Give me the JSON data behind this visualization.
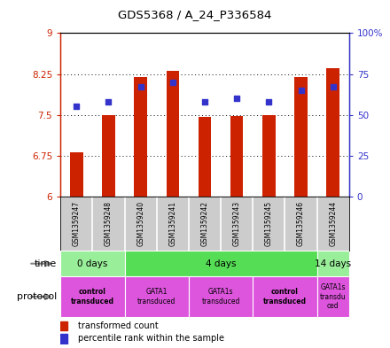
{
  "title": "GDS5368 / A_24_P336584",
  "samples": [
    "GSM1359247",
    "GSM1359248",
    "GSM1359240",
    "GSM1359241",
    "GSM1359242",
    "GSM1359243",
    "GSM1359245",
    "GSM1359246",
    "GSM1359244"
  ],
  "bar_values": [
    6.82,
    7.5,
    8.19,
    8.3,
    7.46,
    7.48,
    7.5,
    8.19,
    8.35
  ],
  "dot_values": [
    55,
    58,
    67,
    70,
    58,
    60,
    58,
    65,
    67
  ],
  "ylim_left": [
    6,
    9
  ],
  "ylim_right": [
    0,
    100
  ],
  "yticks_left": [
    6,
    6.75,
    7.5,
    8.25,
    9
  ],
  "yticks_right": [
    0,
    25,
    50,
    75,
    100
  ],
  "bar_color": "#cc2200",
  "dot_color": "#3333cc",
  "bar_base": 6,
  "time_groups": [
    {
      "label": "0 days",
      "start": 0,
      "end": 2,
      "color": "#99ee99"
    },
    {
      "label": "4 days",
      "start": 2,
      "end": 8,
      "color": "#55dd55"
    },
    {
      "label": "14 days",
      "start": 8,
      "end": 9,
      "color": "#99ee99"
    }
  ],
  "protocol_groups": [
    {
      "label": "control\ntransduced",
      "start": 0,
      "end": 2,
      "color": "#dd55dd",
      "bold": true
    },
    {
      "label": "GATA1\ntransduced",
      "start": 2,
      "end": 4,
      "color": "#dd55dd",
      "bold": false
    },
    {
      "label": "GATA1s\ntransduced",
      "start": 4,
      "end": 6,
      "color": "#dd55dd",
      "bold": false
    },
    {
      "label": "control\ntransduced",
      "start": 6,
      "end": 8,
      "color": "#dd55dd",
      "bold": true
    },
    {
      "label": "GATA1s\ntransdu\nced",
      "start": 8,
      "end": 9,
      "color": "#dd55dd",
      "bold": false
    }
  ],
  "sample_box_color": "#cccccc",
  "left_axis_color": "#cc2200",
  "right_axis_color": "#3333cc",
  "bar_width": 0.4
}
